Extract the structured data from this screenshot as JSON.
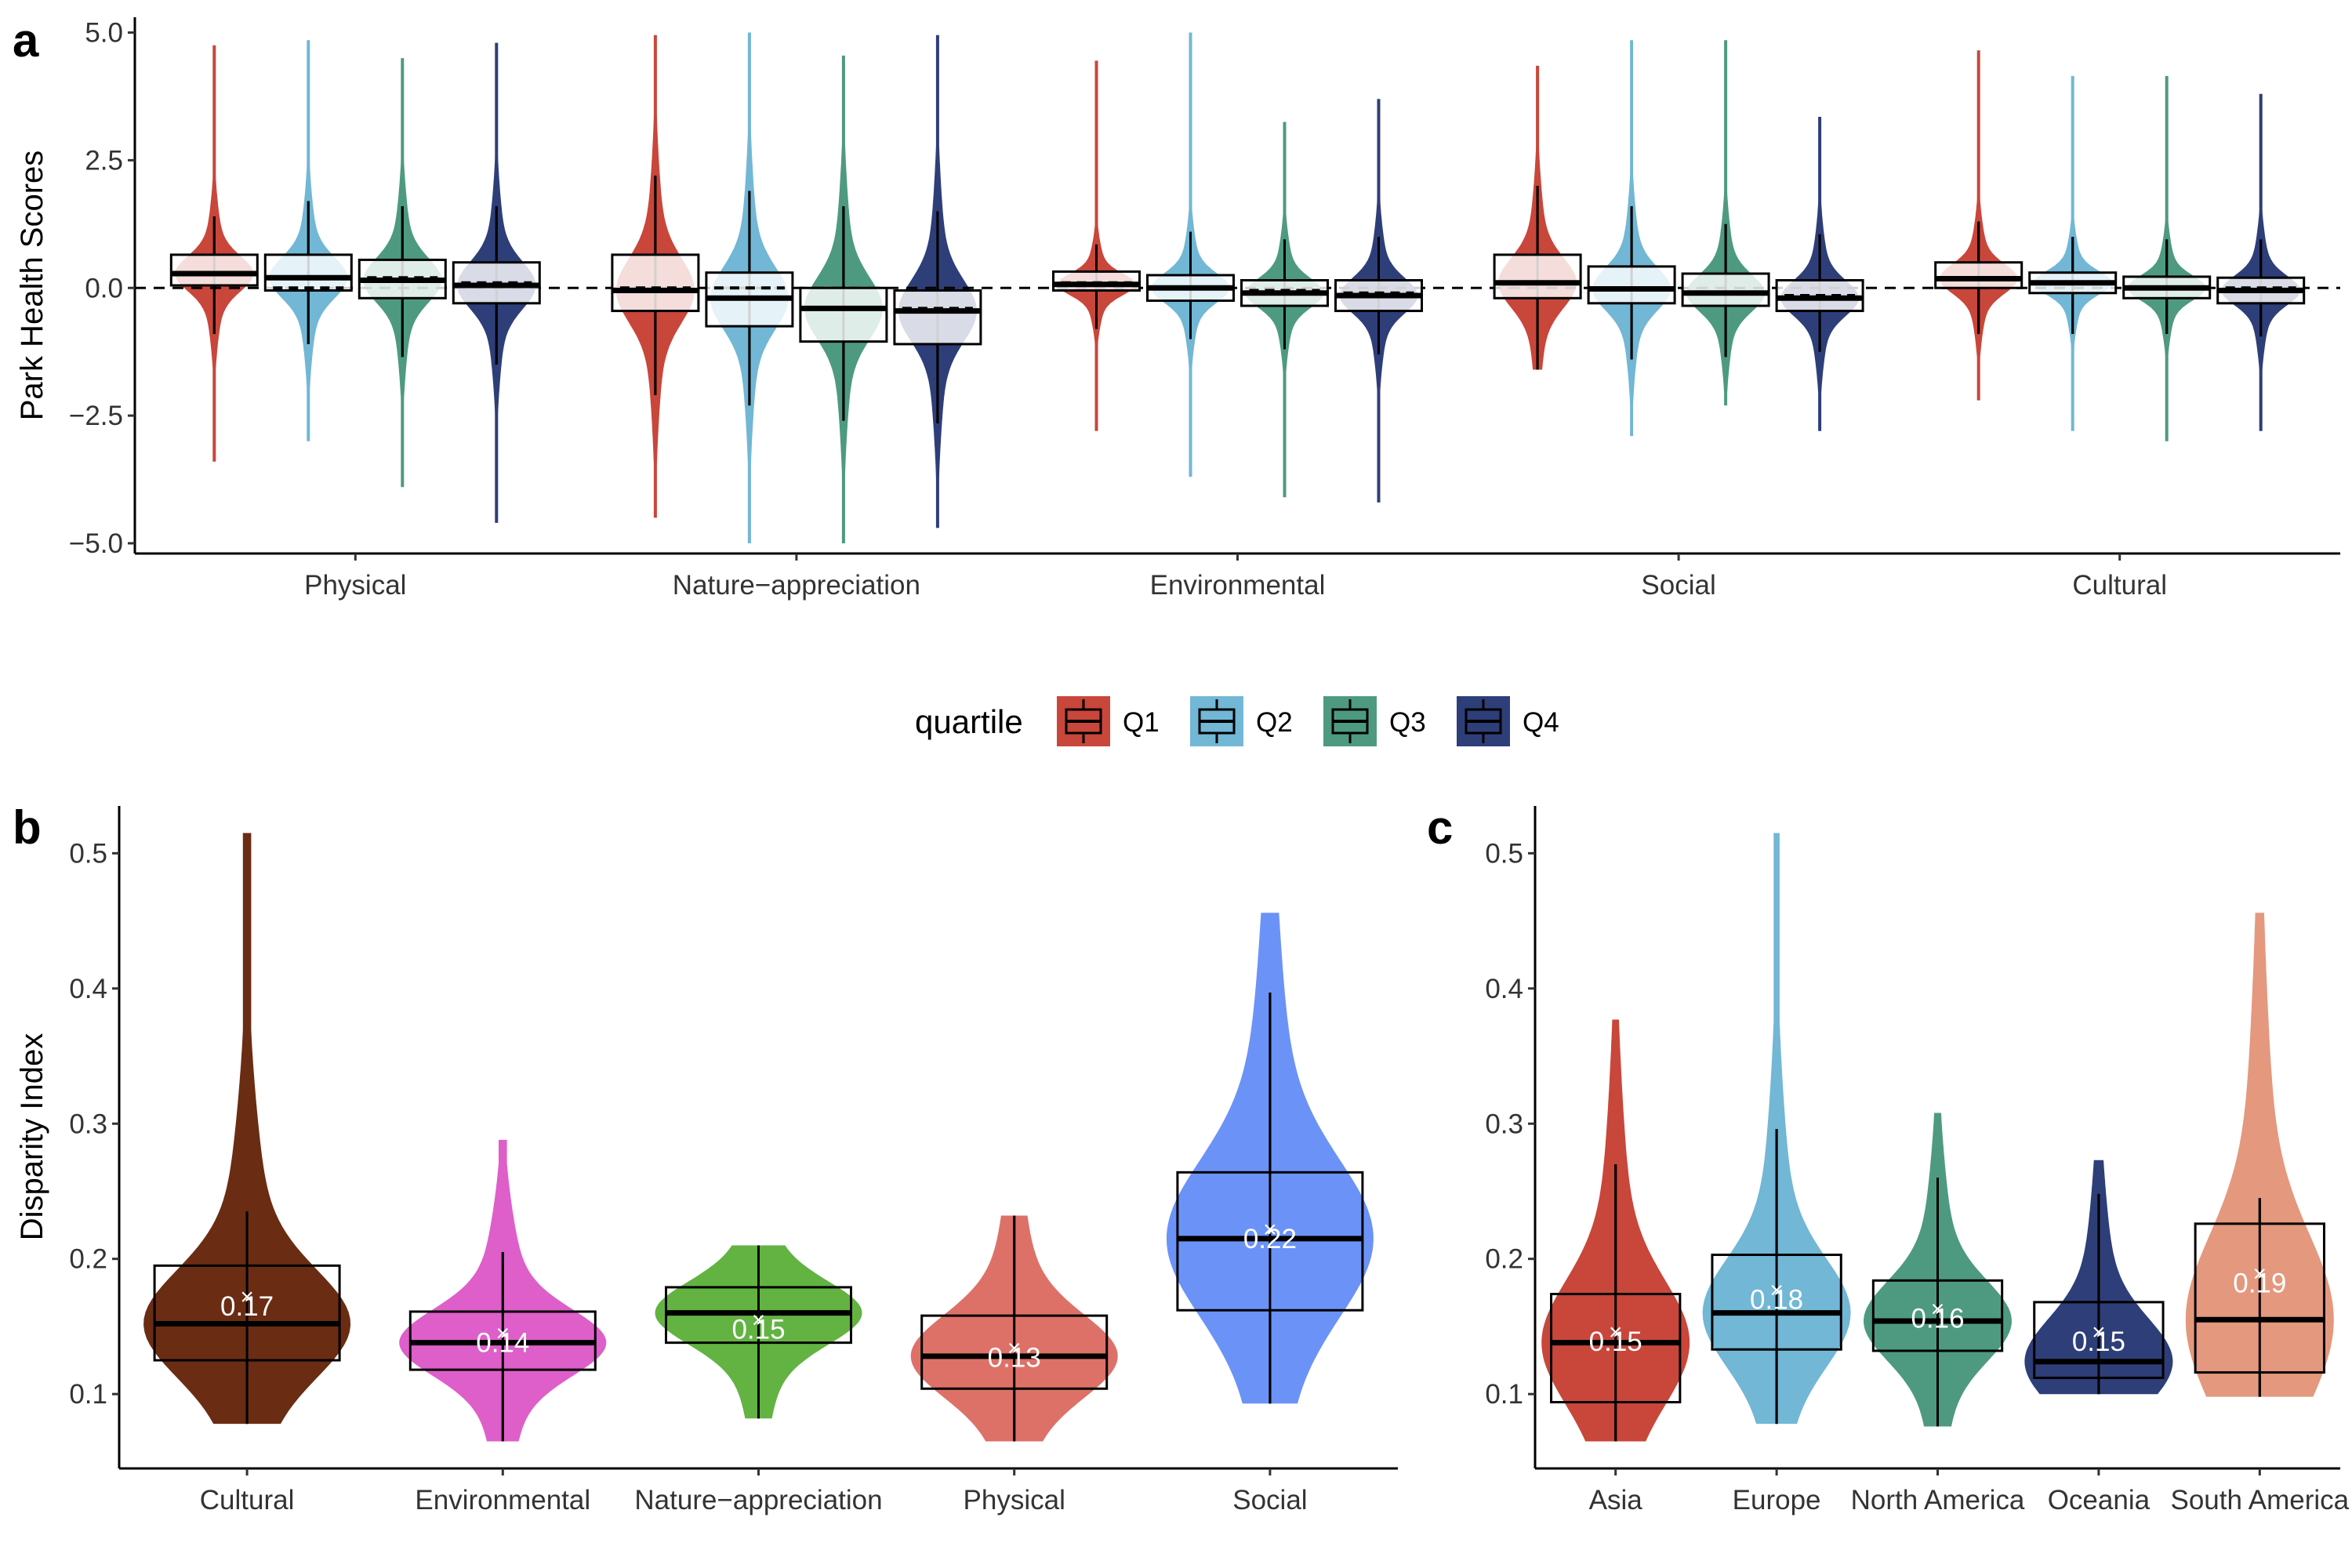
{
  "chart_data": [
    {
      "panel": "a",
      "type": "violin+box",
      "ylabel": "Park Health Scores",
      "ylim": [
        -5.2,
        5.3
      ],
      "yticks": [
        5.0,
        2.5,
        0.0,
        -2.5,
        -5.0
      ],
      "ytick_labels": [
        "5.0",
        "2.5",
        "0.0",
        "−2.5",
        "−5.0"
      ],
      "reference_line": 0,
      "categories": [
        "Physical",
        "Nature−appreciation",
        "Environmental",
        "Social",
        "Cultural"
      ],
      "legend": {
        "title": "quartile",
        "position": "between panels"
      },
      "series": [
        {
          "name": "Q1",
          "color": "#C9463A",
          "stats": [
            {
              "min": -3.4,
              "q1": 0.05,
              "median": 0.28,
              "mean": 0.3,
              "q3": 0.65,
              "max": 4.75,
              "whisker_low": -0.9,
              "whisker_high": 1.4
            },
            {
              "min": -4.5,
              "q1": -0.45,
              "median": -0.05,
              "mean": 0.0,
              "q3": 0.65,
              "max": 4.95,
              "whisker_low": -2.1,
              "whisker_high": 2.2
            },
            {
              "min": -2.8,
              "q1": -0.05,
              "median": 0.07,
              "mean": 0.1,
              "q3": 0.32,
              "max": 4.45,
              "whisker_low": -0.8,
              "whisker_high": 0.85
            },
            {
              "min": -1.6,
              "q1": -0.2,
              "median": 0.1,
              "mean": 0.1,
              "q3": 0.65,
              "max": 4.35,
              "whisker_low": -1.6,
              "whisker_high": 2.0
            },
            {
              "min": -2.2,
              "q1": 0.0,
              "median": 0.18,
              "mean": 0.2,
              "q3": 0.5,
              "max": 4.65,
              "whisker_low": -0.9,
              "whisker_high": 1.3
            }
          ]
        },
        {
          "name": "Q2",
          "color": "#72B7D5",
          "stats": [
            {
              "min": -3.0,
              "q1": -0.05,
              "median": 0.2,
              "mean": 0.0,
              "q3": 0.65,
              "max": 4.85,
              "whisker_low": -1.1,
              "whisker_high": 1.7
            },
            {
              "min": -5.0,
              "q1": -0.75,
              "median": -0.2,
              "mean": 0.0,
              "q3": 0.3,
              "max": 5.0,
              "whisker_low": -2.3,
              "whisker_high": 1.9
            },
            {
              "min": -3.7,
              "q1": -0.25,
              "median": 0.0,
              "mean": 0.0,
              "q3": 0.25,
              "max": 5.0,
              "whisker_low": -1.0,
              "whisker_high": 1.1
            },
            {
              "min": -2.9,
              "q1": -0.3,
              "median": -0.02,
              "mean": 0.0,
              "q3": 0.42,
              "max": 4.85,
              "whisker_low": -1.4,
              "whisker_high": 1.6
            },
            {
              "min": -2.8,
              "q1": -0.1,
              "median": 0.1,
              "mean": 0.1,
              "q3": 0.3,
              "max": 4.15,
              "whisker_low": -0.9,
              "whisker_high": 1.0
            }
          ]
        },
        {
          "name": "Q3",
          "color": "#4E9A80",
          "stats": [
            {
              "min": -3.9,
              "q1": -0.2,
              "median": 0.15,
              "mean": 0.2,
              "q3": 0.55,
              "max": 4.5,
              "whisker_low": -1.35,
              "whisker_high": 1.6
            },
            {
              "min": -5.0,
              "q1": -1.05,
              "median": -0.4,
              "mean": -0.4,
              "q3": 0.0,
              "max": 4.55,
              "whisker_low": -2.6,
              "whisker_high": 1.6
            },
            {
              "min": -4.1,
              "q1": -0.35,
              "median": -0.1,
              "mean": -0.05,
              "q3": 0.15,
              "max": 3.25,
              "whisker_low": -1.2,
              "whisker_high": 0.95
            },
            {
              "min": -2.3,
              "q1": -0.35,
              "median": -0.1,
              "mean": -0.1,
              "q3": 0.28,
              "max": 4.85,
              "whisker_low": -1.35,
              "whisker_high": 1.25
            },
            {
              "min": -3.0,
              "q1": -0.2,
              "median": 0.0,
              "mean": 0.0,
              "q3": 0.22,
              "max": 4.15,
              "whisker_low": -0.9,
              "whisker_high": 0.95
            }
          ]
        },
        {
          "name": "Q4",
          "color": "#2E3E78",
          "stats": [
            {
              "min": -4.6,
              "q1": -0.3,
              "median": 0.05,
              "mean": 0.1,
              "q3": 0.5,
              "max": 4.8,
              "whisker_low": -1.5,
              "whisker_high": 1.6
            },
            {
              "min": -4.7,
              "q1": -1.1,
              "median": -0.45,
              "mean": -0.4,
              "q3": -0.05,
              "max": 4.95,
              "whisker_low": -2.65,
              "whisker_high": 1.5
            },
            {
              "min": -4.2,
              "q1": -0.45,
              "median": -0.15,
              "mean": -0.1,
              "q3": 0.15,
              "max": 3.7,
              "whisker_low": -1.3,
              "whisker_high": 1.0
            },
            {
              "min": -2.8,
              "q1": -0.45,
              "median": -0.2,
              "mean": -0.15,
              "q3": 0.15,
              "max": 3.35,
              "whisker_low": -1.25,
              "whisker_high": 1.05
            },
            {
              "min": -2.8,
              "q1": -0.3,
              "median": -0.05,
              "mean": 0.0,
              "q3": 0.2,
              "max": 3.8,
              "whisker_low": -0.95,
              "whisker_high": 0.95
            }
          ]
        }
      ]
    },
    {
      "panel": "b",
      "type": "violin+box",
      "ylabel": "Disparity Index",
      "ylim": [
        0.045,
        0.535
      ],
      "yticks": [
        0.1,
        0.2,
        0.3,
        0.4,
        0.5
      ],
      "ytick_labels": [
        "0.1",
        "0.2",
        "0.3",
        "0.4",
        "0.5"
      ],
      "categories": [
        "Cultural",
        "Environmental",
        "Nature−appreciation",
        "Physical",
        "Social"
      ],
      "colors": [
        "#6A2C13",
        "#DE5FC9",
        "#62B342",
        "#DD7168",
        "#6B93F7"
      ],
      "stats": [
        {
          "min": 0.078,
          "q1": 0.125,
          "median": 0.152,
          "q3": 0.195,
          "max": 0.515,
          "whisker_low": 0.078,
          "whisker_high": 0.235,
          "mean": 0.172
        },
        {
          "min": 0.065,
          "q1": 0.118,
          "median": 0.138,
          "q3": 0.161,
          "max": 0.288,
          "whisker_low": 0.065,
          "whisker_high": 0.205,
          "mean": 0.145
        },
        {
          "min": 0.082,
          "q1": 0.138,
          "median": 0.16,
          "q3": 0.179,
          "max": 0.21,
          "whisker_low": 0.082,
          "whisker_high": 0.21,
          "mean": 0.155
        },
        {
          "min": 0.065,
          "q1": 0.104,
          "median": 0.128,
          "q3": 0.158,
          "max": 0.232,
          "whisker_low": 0.065,
          "whisker_high": 0.232,
          "mean": 0.134
        },
        {
          "min": 0.093,
          "q1": 0.162,
          "median": 0.215,
          "q3": 0.264,
          "max": 0.456,
          "whisker_low": 0.093,
          "whisker_high": 0.397,
          "mean": 0.222
        }
      ],
      "mean_labels": [
        "0.17",
        "0.14",
        "0.15",
        "0.13",
        "0.22"
      ]
    },
    {
      "panel": "c",
      "type": "violin+box",
      "ylim": [
        0.045,
        0.535
      ],
      "yticks": [
        0.1,
        0.2,
        0.3,
        0.4,
        0.5
      ],
      "ytick_labels": [
        "0.1",
        "0.2",
        "0.3",
        "0.4",
        "0.5"
      ],
      "categories": [
        "Asia",
        "Europe",
        "North America",
        "Oceania",
        "South America"
      ],
      "colors": [
        "#C9463A",
        "#72B7D5",
        "#4E9A80",
        "#2E3E78",
        "#E4987E"
      ],
      "stats": [
        {
          "min": 0.065,
          "q1": 0.094,
          "median": 0.138,
          "q3": 0.174,
          "max": 0.377,
          "whisker_low": 0.065,
          "whisker_high": 0.27,
          "mean": 0.146
        },
        {
          "min": 0.078,
          "q1": 0.133,
          "median": 0.16,
          "q3": 0.203,
          "max": 0.515,
          "whisker_low": 0.078,
          "whisker_high": 0.296,
          "mean": 0.177
        },
        {
          "min": 0.076,
          "q1": 0.132,
          "median": 0.154,
          "q3": 0.184,
          "max": 0.308,
          "whisker_low": 0.076,
          "whisker_high": 0.26,
          "mean": 0.163
        },
        {
          "min": 0.1,
          "q1": 0.112,
          "median": 0.124,
          "q3": 0.168,
          "max": 0.273,
          "whisker_low": 0.1,
          "whisker_high": 0.248,
          "mean": 0.146
        },
        {
          "min": 0.098,
          "q1": 0.116,
          "median": 0.155,
          "q3": 0.226,
          "max": 0.456,
          "whisker_low": 0.098,
          "whisker_high": 0.245,
          "mean": 0.189
        }
      ],
      "mean_labels": [
        "0.15",
        "0.18",
        "0.16",
        "0.15",
        "0.19"
      ]
    }
  ],
  "panel_labels": {
    "a": "a",
    "b": "b",
    "c": "c"
  },
  "legend": {
    "title": "quartile",
    "items": [
      "Q1",
      "Q2",
      "Q3",
      "Q4"
    ]
  }
}
